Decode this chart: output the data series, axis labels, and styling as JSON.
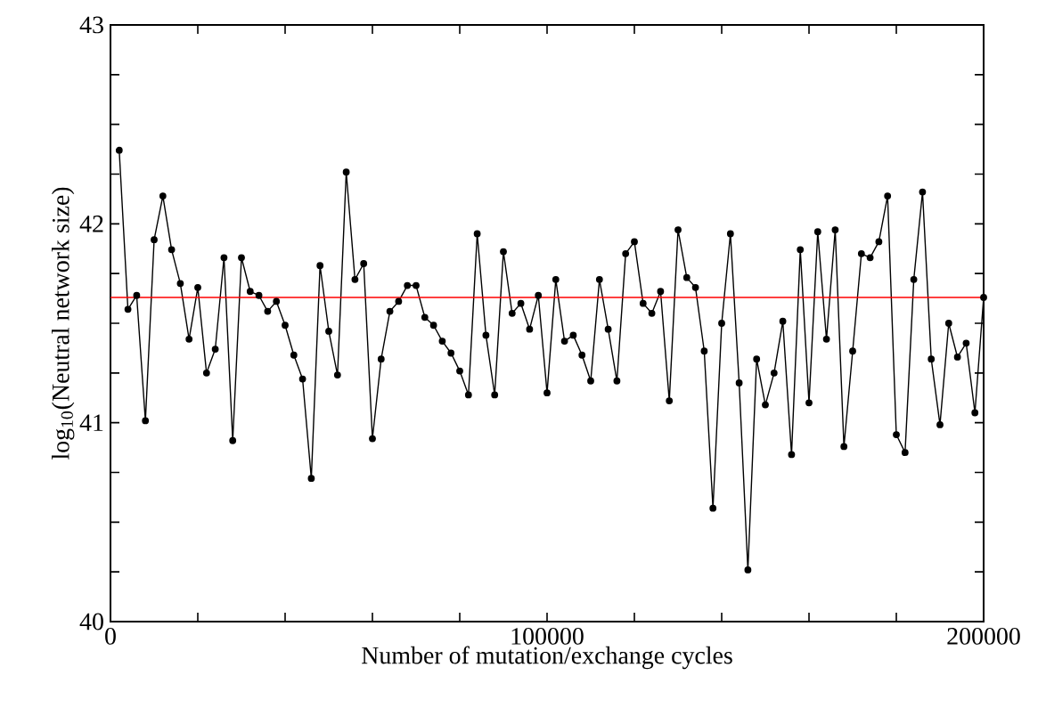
{
  "chart_data": {
    "type": "line",
    "xlabel": "Number of mutation/exchange cycles",
    "ylabel": "log$_{10}$(Neutral network size)",
    "x": [
      2000,
      4000,
      6000,
      8000,
      10000,
      12000,
      14000,
      16000,
      18000,
      20000,
      22000,
      24000,
      26000,
      28000,
      30000,
      32000,
      34000,
      36000,
      38000,
      40000,
      42000,
      44000,
      46000,
      48000,
      50000,
      52000,
      54000,
      56000,
      58000,
      60000,
      62000,
      64000,
      66000,
      68000,
      70000,
      72000,
      74000,
      76000,
      78000,
      80000,
      82000,
      84000,
      86000,
      88000,
      90000,
      92000,
      94000,
      96000,
      98000,
      100000,
      102000,
      104000,
      106000,
      108000,
      110000,
      112000,
      114000,
      116000,
      118000,
      120000,
      122000,
      124000,
      126000,
      128000,
      130000,
      132000,
      134000,
      136000,
      138000,
      140000,
      142000,
      144000,
      146000,
      148000,
      150000,
      152000,
      154000,
      156000,
      158000,
      160000,
      162000,
      164000,
      166000,
      168000,
      170000,
      172000,
      174000,
      176000,
      178000,
      180000,
      182000,
      184000,
      186000,
      188000,
      190000,
      192000,
      194000,
      196000,
      198000,
      200000
    ],
    "series": [
      {
        "color": "#000000",
        "values": [
          42.37,
          41.57,
          41.64,
          41.01,
          41.92,
          42.14,
          41.87,
          41.7,
          41.42,
          41.68,
          41.25,
          41.37,
          41.83,
          40.91,
          41.83,
          41.66,
          41.64,
          41.56,
          41.61,
          41.49,
          41.34,
          41.22,
          40.72,
          41.79,
          41.46,
          41.24,
          42.26,
          41.72,
          41.8,
          40.92,
          41.32,
          41.56,
          41.61,
          41.69,
          41.69,
          41.53,
          41.49,
          41.41,
          41.35,
          41.26,
          41.14,
          41.95,
          41.44,
          41.14,
          41.86,
          41.55,
          41.6,
          41.47,
          41.64,
          41.15,
          41.72,
          41.41,
          41.44,
          41.34,
          41.21,
          41.72,
          41.47,
          41.21,
          41.85,
          41.91,
          41.6,
          41.55,
          41.66,
          41.11,
          41.97,
          41.73,
          41.68,
          41.36,
          40.57,
          41.5,
          41.95,
          41.2,
          40.26,
          41.32,
          41.09,
          41.25,
          41.51,
          40.84,
          41.87,
          41.1,
          41.96,
          41.42,
          41.97,
          40.88,
          41.36,
          41.85,
          41.83,
          41.91,
          42.14,
          40.94,
          40.85,
          41.72,
          42.16,
          41.32,
          40.99,
          41.5,
          41.33,
          41.4,
          41.05,
          41.63
        ]
      }
    ],
    "marker": "circle",
    "line_style": "solid",
    "ref_lines": [
      {
        "axis": "y",
        "value": 41.63,
        "color": "#ff0000"
      }
    ],
    "xlim": [
      0,
      200000
    ],
    "ylim": [
      40,
      43
    ],
    "xticks": [
      0,
      {
        "value": 20000,
        "label": null
      },
      {
        "value": 40000,
        "label": null
      },
      {
        "value": 60000,
        "label": null
      },
      {
        "value": 80000,
        "label": null
      },
      100000,
      {
        "value": 120000,
        "label": null
      },
      {
        "value": 140000,
        "label": null
      },
      {
        "value": 160000,
        "label": null
      },
      {
        "value": 180000,
        "label": null
      },
      200000
    ],
    "yticks": [
      40,
      {
        "value": 40.25,
        "label": null
      },
      {
        "value": 40.5,
        "label": null
      },
      {
        "value": 40.75,
        "label": null
      },
      41,
      {
        "value": 41.25,
        "label": null
      },
      {
        "value": 41.5,
        "label": null
      },
      {
        "value": 41.75,
        "label": null
      },
      42,
      {
        "value": 42.25,
        "label": null
      },
      {
        "value": 42.5,
        "label": null
      },
      {
        "value": 42.75,
        "label": null
      },
      43
    ]
  }
}
